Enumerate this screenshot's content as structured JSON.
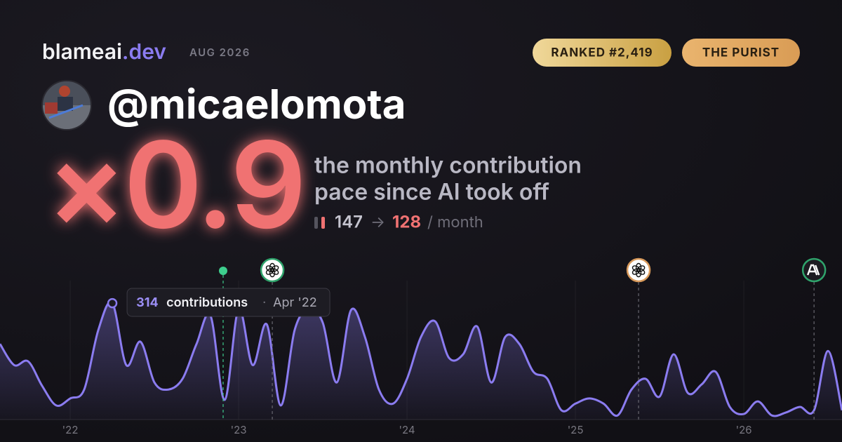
{
  "brand": {
    "name": "blameai",
    "tld": ".dev",
    "date": "AUG 2026"
  },
  "badges": [
    "RANKED #2,419",
    "THE PURIST"
  ],
  "handle": "@micaelomota",
  "headline": {
    "multiplier": "×0.9",
    "lines": [
      "the monthly contribution",
      "pace since AI took off"
    ],
    "before": 147,
    "arrow": "→",
    "after": 128,
    "unit": "/ month"
  },
  "chart_data": {
    "type": "line",
    "x": [
      2021.583,
      2021.667,
      2021.75,
      2021.833,
      2021.917,
      2022,
      2022.083,
      2022.167,
      2022.25,
      2022.333,
      2022.417,
      2022.5,
      2022.583,
      2022.667,
      2022.75,
      2022.833,
      2022.917,
      2023,
      2023.083,
      2023.167,
      2023.25,
      2023.333,
      2023.417,
      2023.5,
      2023.583,
      2023.667,
      2023.75,
      2023.833,
      2023.917,
      2024,
      2024.083,
      2024.167,
      2024.25,
      2024.333,
      2024.417,
      2024.5,
      2024.583,
      2024.667,
      2024.75,
      2024.833,
      2024.917,
      2025,
      2025.083,
      2025.167,
      2025.25,
      2025.333,
      2025.417,
      2025.5,
      2025.583,
      2025.667,
      2025.75,
      2025.833,
      2025.917,
      2026,
      2026.083,
      2026.167,
      2026.25,
      2026.333,
      2026.417,
      2026.5,
      2026.583
    ],
    "series": [
      {
        "name": "contributions",
        "color": "#8b7cf0",
        "values": [
          204,
          147,
          157,
          91,
          38,
          57,
          81,
          242,
          314,
          147,
          210,
          100,
          81,
          110,
          204,
          280,
          53,
          299,
          147,
          257,
          38,
          242,
          299,
          261,
          100,
          295,
          223,
          81,
          43,
          110,
          223,
          265,
          166,
          176,
          251,
          100,
          223,
          204,
          129,
          110,
          25,
          43,
          57,
          43,
          11,
          81,
          110,
          62,
          176,
          72,
          95,
          129,
          34,
          15,
          49,
          11,
          19,
          34,
          25,
          185,
          25
        ]
      }
    ],
    "xlim": [
      2021.583,
      2026.583
    ],
    "ylim": [
      0,
      390
    ],
    "xticks": [
      {
        "value": 2022,
        "label": "'22"
      },
      {
        "value": 2023,
        "label": "'23"
      },
      {
        "value": 2024,
        "label": "'24"
      },
      {
        "value": 2025,
        "label": "'25"
      },
      {
        "value": 2026,
        "label": "'26"
      }
    ],
    "grid": true,
    "tooltip": {
      "x": 2022.25,
      "unit": "contributions",
      "sep": "·",
      "label": "Apr '22"
    },
    "markers": [
      {
        "x": 2022.908,
        "kind": "dot",
        "color": "#3ecf8e"
      },
      {
        "x": 2023.2,
        "kind": "openai",
        "color": "#2fa36b"
      },
      {
        "x": 2025.375,
        "kind": "openai",
        "color": "#d99a5b"
      },
      {
        "x": 2026.417,
        "kind": "anthropic",
        "color": "#2fa36b"
      }
    ]
  }
}
